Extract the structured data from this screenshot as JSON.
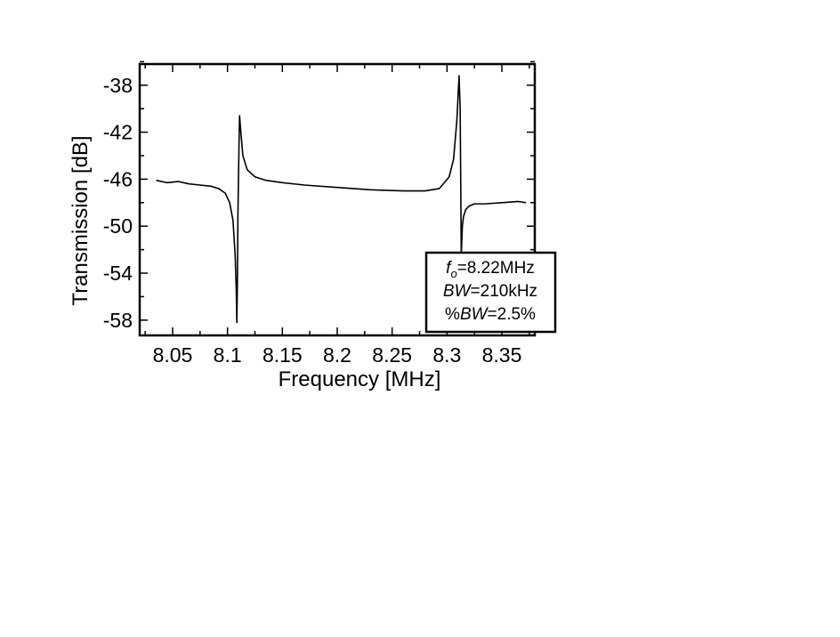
{
  "chart_data": {
    "type": "line",
    "title": "",
    "xlabel": "Frequency [MHz]",
    "ylabel": "Transmission [dB]",
    "xlim": [
      8.02,
      8.38
    ],
    "ylim": [
      -59.3,
      -36.2
    ],
    "grid": false,
    "legend": "none",
    "x_ticks": [
      8.05,
      8.1,
      8.15,
      8.2,
      8.25,
      8.3,
      8.35
    ],
    "x_tick_labels": [
      "8.05",
      "8.1",
      "8.15",
      "8.2",
      "8.25",
      "8.3",
      "8.35"
    ],
    "y_ticks": [
      -38,
      -42,
      -46,
      -50,
      -54,
      -58
    ],
    "y_tick_labels": [
      "-38",
      "-42",
      "-46",
      "-50",
      "-54",
      "-58"
    ],
    "series": [
      {
        "color": "#000000",
        "x": [
          8.035,
          8.045,
          8.055,
          8.065,
          8.075,
          8.085,
          8.092,
          8.098,
          8.102,
          8.105,
          8.107,
          8.108,
          8.1085,
          8.109,
          8.1095,
          8.1105,
          8.111,
          8.112,
          8.114,
          8.118,
          8.125,
          8.135,
          8.15,
          8.17,
          8.2,
          8.23,
          8.26,
          8.28,
          8.293,
          8.302,
          8.306,
          8.309,
          8.311,
          8.312,
          8.3125,
          8.313,
          8.314,
          8.315,
          8.317,
          8.32,
          8.325,
          8.335,
          8.35,
          8.365,
          8.372
        ],
        "y": [
          -46.1,
          -46.3,
          -46.2,
          -46.4,
          -46.5,
          -46.6,
          -46.8,
          -47.2,
          -48.0,
          -49.5,
          -52.5,
          -55.5,
          -58.2,
          -55.0,
          -49.0,
          -43.0,
          -40.6,
          -41.8,
          -44.0,
          -45.2,
          -45.8,
          -46.1,
          -46.3,
          -46.5,
          -46.7,
          -46.9,
          -47.0,
          -47.0,
          -46.8,
          -45.8,
          -44.3,
          -41.0,
          -37.2,
          -40.0,
          -46.0,
          -52.5,
          -50.0,
          -49.2,
          -48.6,
          -48.3,
          -48.1,
          -48.1,
          -48.0,
          -47.9,
          -48.0
        ]
      }
    ],
    "annotation": {
      "f0_symbol": "f",
      "f0_subscript": "o",
      "f0_value": "=8.22MHz",
      "bw_symbol": "BW",
      "bw_value": "=210kHz",
      "pbw_prefix": "%",
      "pbw_symbol": "BW",
      "pbw_value": "=2.5%"
    }
  }
}
